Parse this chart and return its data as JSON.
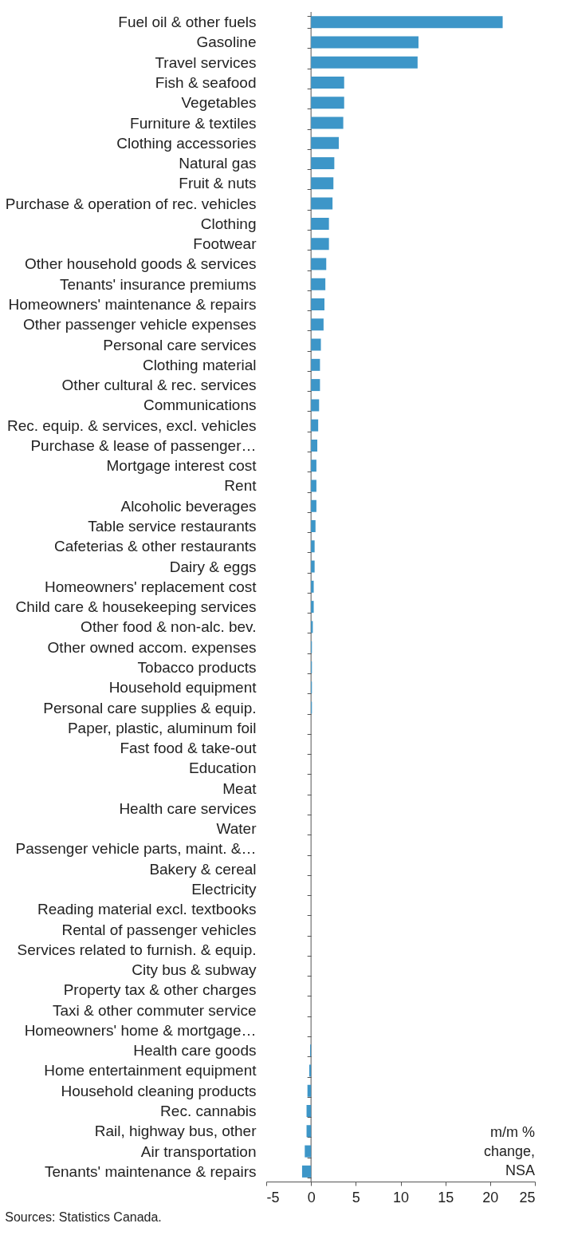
{
  "chart_data": {
    "type": "bar",
    "orientation": "horizontal",
    "categories": [
      "Fuel oil & other fuels",
      "Gasoline",
      "Travel services",
      "Fish & seafood",
      "Vegetables",
      "Furniture & textiles",
      "Clothing accessories",
      "Natural gas",
      "Fruit & nuts",
      "Purchase & operation of rec. vehicles",
      "Clothing",
      "Footwear",
      "Other household goods & services",
      "Tenants' insurance premiums",
      "Homeowners' maintenance & repairs",
      "Other passenger vehicle expenses",
      "Personal care services",
      "Clothing material",
      "Other cultural & rec. services",
      "Communications",
      "Rec. equip. & services, excl. vehicles",
      "Purchase & lease of passenger…",
      "Mortgage interest cost",
      "Rent",
      "Alcoholic beverages",
      "Table service restaurants",
      "Cafeterias & other restaurants",
      "Dairy & eggs",
      "Homeowners' replacement cost",
      "Child care & housekeeping services",
      "Other food & non-alc. bev.",
      "Other owned accom. expenses",
      "Tobacco products",
      "Household equipment",
      "Personal care supplies & equip.",
      "Paper, plastic, aluminum foil",
      "Fast food & take-out",
      "Education",
      "Meat",
      "Health care services",
      "Water",
      "Passenger vehicle parts, maint. &…",
      "Bakery & cereal",
      "Electricity",
      "Reading material excl. textbooks",
      "Rental of passenger vehicles",
      "Services related to furnish. & equip.",
      "City bus & subway",
      "Property tax & other charges",
      "Taxi & other commuter service",
      "Homeowners' home & mortgage…",
      "Health care goods",
      "Home entertainment equipment",
      "Household cleaning products",
      "Rec. cannabis",
      "Rail, highway bus, other",
      "Air transportation",
      "Tenants' maintenance & repairs"
    ],
    "values": [
      21.4,
      12.0,
      11.9,
      3.7,
      3.7,
      3.6,
      3.1,
      2.6,
      2.5,
      2.4,
      2.0,
      2.0,
      1.7,
      1.6,
      1.5,
      1.4,
      1.1,
      1.0,
      1.0,
      0.9,
      0.8,
      0.7,
      0.6,
      0.6,
      0.6,
      0.5,
      0.4,
      0.4,
      0.3,
      0.3,
      0.2,
      0.1,
      0.1,
      0.1,
      0.1,
      0,
      0,
      0,
      0,
      0,
      0,
      0,
      0,
      0,
      0,
      0,
      0,
      0,
      0,
      0,
      0,
      -0.1,
      -0.2,
      -0.4,
      -0.5,
      -0.5,
      -0.7,
      -1.0
    ],
    "color": "#3d96c8",
    "xlim": [
      -5,
      25
    ],
    "xticks": [
      -5,
      0,
      5,
      10,
      15,
      20,
      25
    ],
    "xlabel": "m/m % change, NSA",
    "annotations": [
      "Sources: Statistics Canada."
    ],
    "ref_lines": [
      {
        "axis": "x",
        "value": 0,
        "color": "#555555"
      }
    ],
    "grid": false
  }
}
